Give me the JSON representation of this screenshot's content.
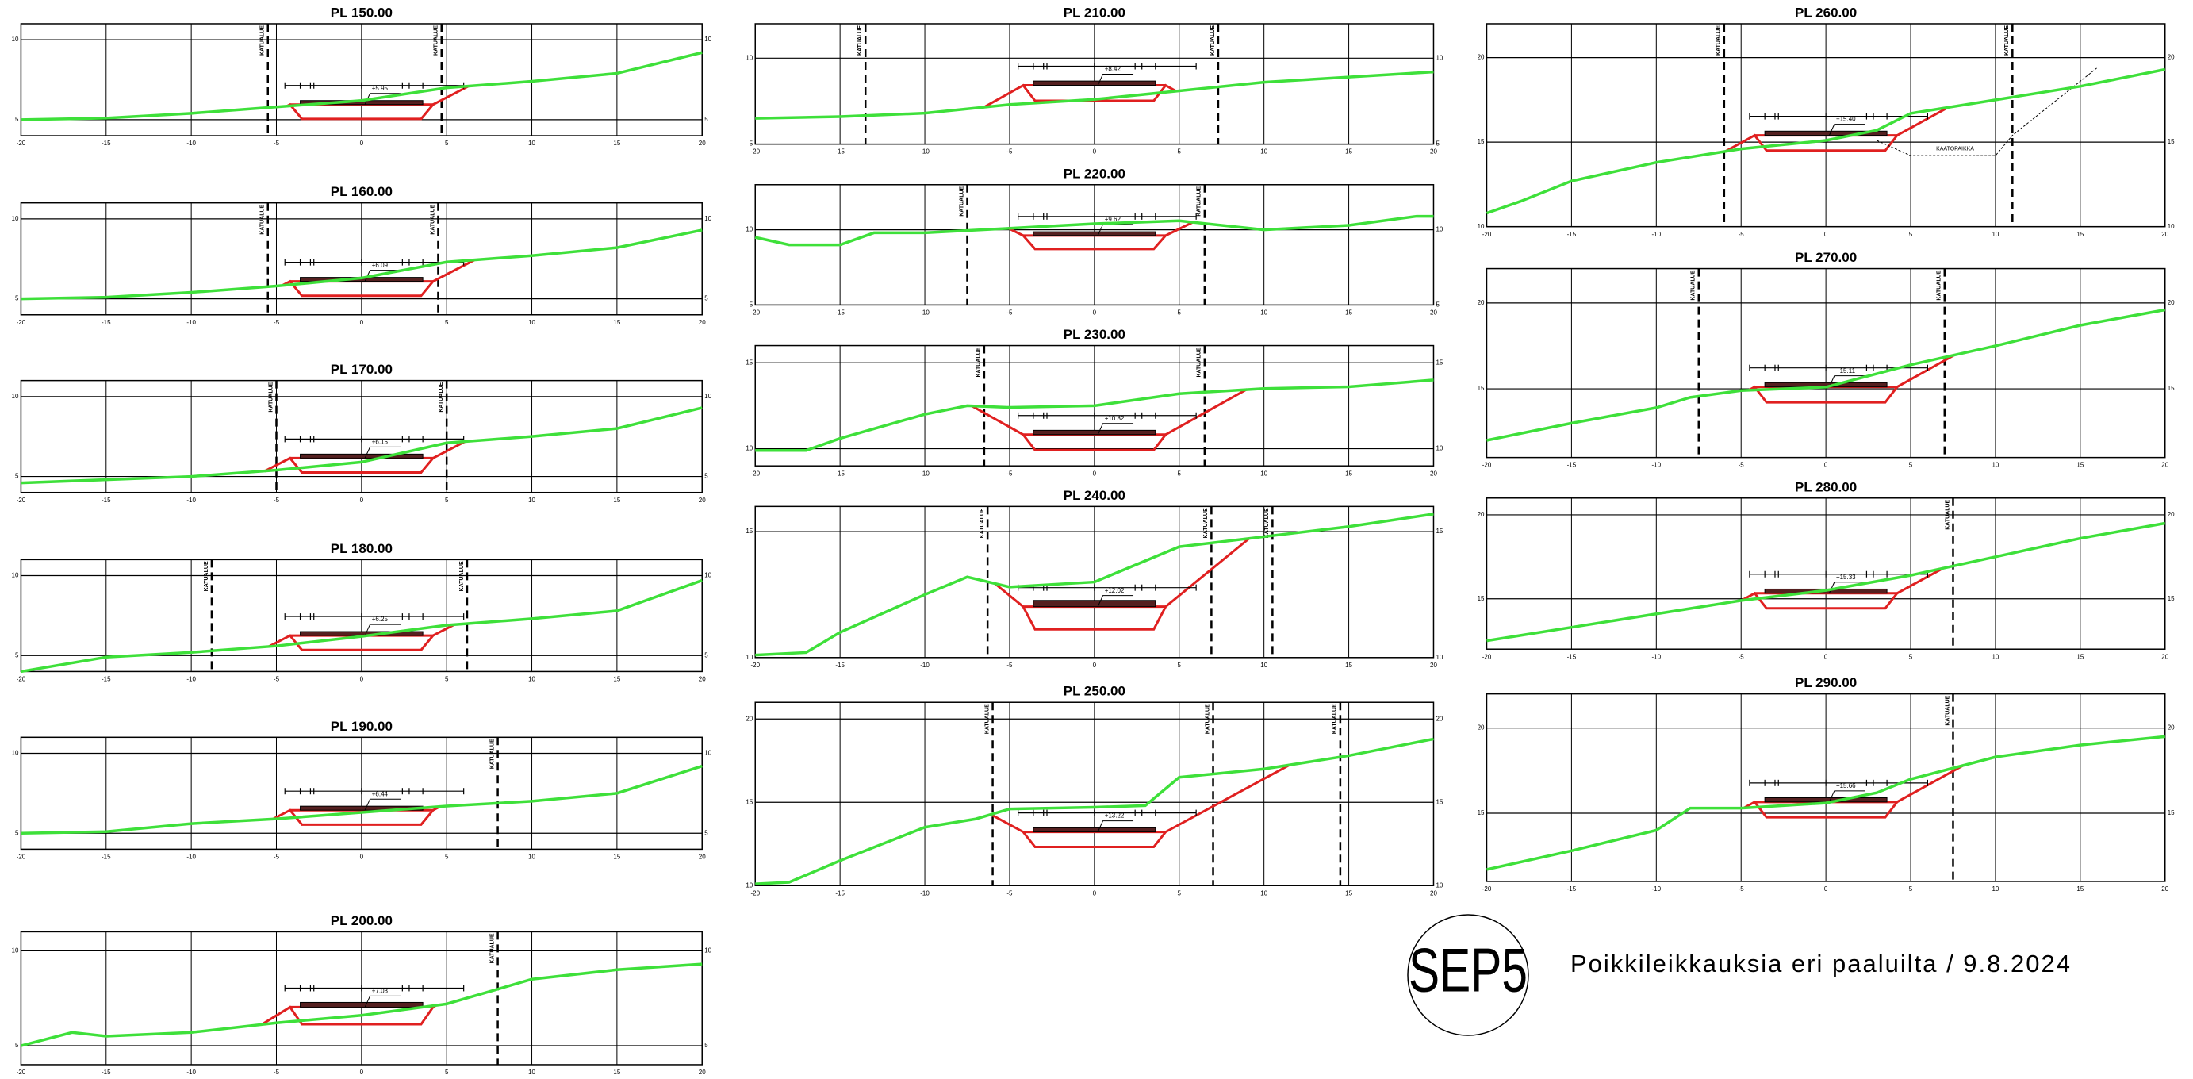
{
  "xlim": [
    -20,
    20
  ],
  "xticks": [
    -20,
    -15,
    -10,
    -5,
    0,
    5,
    10,
    15,
    20
  ],
  "boundary_label": "KATUALUE",
  "logo": "SEP5",
  "caption": "Poikkileikkauksia eri paaluilta / 9.8.2024",
  "sections": [
    {
      "title": "PL 150.00",
      "ylim": [
        4,
        11
      ],
      "yticks": [
        5,
        10
      ],
      "ground": {
        "x": [
          -20,
          -15,
          -10,
          -5,
          0,
          5,
          10,
          15,
          20
        ],
        "y": [
          5.0,
          5.1,
          5.4,
          5.8,
          6.2,
          7.0,
          7.4,
          7.9,
          9.2
        ]
      },
      "level": {
        "value": 5.95,
        "label": "+5.95"
      },
      "boundaries": [
        -5.5,
        4.7
      ]
    },
    {
      "title": "PL 160.00",
      "ylim": [
        4,
        11
      ],
      "yticks": [
        5,
        10
      ],
      "ground": {
        "x": [
          -20,
          -15,
          -10,
          -5,
          0,
          5,
          10,
          15,
          20
        ],
        "y": [
          5.0,
          5.1,
          5.4,
          5.8,
          6.3,
          7.3,
          7.7,
          8.2,
          9.3
        ]
      },
      "level": {
        "value": 6.09,
        "label": "+6.09"
      },
      "boundaries": [
        -5.5,
        4.5
      ]
    },
    {
      "title": "PL 170.00",
      "ylim": [
        4,
        11
      ],
      "yticks": [
        5,
        10
      ],
      "ground": {
        "x": [
          -20,
          -15,
          -10,
          -5,
          0,
          5,
          10,
          15,
          20
        ],
        "y": [
          4.6,
          4.8,
          5.0,
          5.4,
          5.9,
          7.1,
          7.5,
          8.0,
          9.3
        ]
      },
      "level": {
        "value": 6.15,
        "label": "+6.15"
      },
      "boundaries": [
        -5,
        5
      ]
    },
    {
      "title": "PL 180.00",
      "ylim": [
        4,
        11
      ],
      "yticks": [
        5,
        10
      ],
      "ground": {
        "x": [
          -20,
          -15,
          -10,
          -5,
          0,
          5,
          10,
          15,
          20
        ],
        "y": [
          4.0,
          4.9,
          5.2,
          5.6,
          6.2,
          6.9,
          7.3,
          7.8,
          9.7
        ]
      },
      "level": {
        "value": 6.25,
        "label": "+6.25"
      },
      "boundaries": [
        -8.8,
        6.2
      ]
    },
    {
      "title": "PL 190.00",
      "ylim": [
        4,
        11
      ],
      "yticks": [
        5,
        10
      ],
      "ground": {
        "x": [
          -20,
          -15,
          -10,
          -5,
          0,
          5,
          10,
          15,
          20
        ],
        "y": [
          5.0,
          5.1,
          5.6,
          5.9,
          6.3,
          6.7,
          7.0,
          7.5,
          9.2
        ]
      },
      "level": {
        "value": 6.44,
        "label": "+6.44"
      },
      "boundaries": [
        8
      ]
    },
    {
      "title": "PL 200.00",
      "ylim": [
        4,
        11
      ],
      "yticks": [
        5,
        10
      ],
      "ground": {
        "x": [
          -20,
          -17,
          -15,
          -10,
          -5,
          0,
          5,
          10,
          15,
          20
        ],
        "y": [
          5.0,
          5.7,
          5.5,
          5.7,
          6.2,
          6.6,
          7.2,
          8.5,
          9.0,
          9.3
        ]
      },
      "level": {
        "value": 7.03,
        "label": "+7.03"
      },
      "boundaries": [
        8
      ]
    },
    {
      "title": "PL 210.00",
      "ylim": [
        5,
        12
      ],
      "yticks": [
        5,
        10
      ],
      "ground": {
        "x": [
          -20,
          -15,
          -10,
          -5,
          0,
          5,
          10,
          15,
          20
        ],
        "y": [
          6.5,
          6.6,
          6.8,
          7.3,
          7.6,
          8.1,
          8.6,
          8.9,
          9.2
        ]
      },
      "level": {
        "value": 8.42,
        "label": "+8.42"
      },
      "boundaries": [
        -13.5,
        7.3
      ]
    },
    {
      "title": "PL 220.00",
      "ylim": [
        5,
        13
      ],
      "yticks": [
        5,
        10
      ],
      "ground": {
        "x": [
          -20,
          -18,
          -15,
          -13,
          -10,
          -5,
          0,
          5,
          10,
          15,
          19,
          20
        ],
        "y": [
          9.5,
          9.0,
          9.0,
          9.8,
          9.8,
          10.1,
          10.4,
          10.6,
          10.0,
          10.3,
          10.9,
          10.9
        ]
      },
      "level": {
        "value": 9.62,
        "label": "+9.62"
      },
      "boundaries": [
        -7.5,
        6.5
      ]
    },
    {
      "title": "PL 230.00",
      "ylim": [
        9,
        16
      ],
      "yticks": [
        10,
        15
      ],
      "ground": {
        "x": [
          -20,
          -17,
          -15,
          -10,
          -7.5,
          -5,
          0,
          5,
          10,
          15,
          20
        ],
        "y": [
          9.9,
          9.9,
          10.6,
          12.0,
          12.5,
          12.4,
          12.5,
          13.2,
          13.5,
          13.6,
          14.0
        ]
      },
      "level": {
        "value": 10.82,
        "label": "+10.82"
      },
      "boundaries": [
        -6.5,
        6.5
      ]
    },
    {
      "title": "PL 240.00",
      "ylim": [
        10,
        16
      ],
      "yticks": [
        10,
        15
      ],
      "ground": {
        "x": [
          -20,
          -17,
          -15,
          -10,
          -7.5,
          -5,
          0,
          5,
          10,
          15,
          20
        ],
        "y": [
          10.1,
          10.2,
          11.0,
          12.5,
          13.2,
          12.8,
          13.0,
          14.4,
          14.8,
          15.2,
          15.7
        ]
      },
      "level": {
        "value": 12.02,
        "label": "+12.02"
      },
      "boundaries": [
        -6.3,
        6.9,
        10.5
      ]
    },
    {
      "title": "PL 250.00",
      "ylim": [
        10,
        21
      ],
      "yticks": [
        10,
        15,
        20
      ],
      "ground": {
        "x": [
          -20,
          -18,
          -15,
          -10,
          -7,
          -5,
          0,
          3,
          5,
          10,
          15,
          20
        ],
        "y": [
          10.1,
          10.2,
          11.5,
          13.5,
          14.0,
          14.6,
          14.7,
          14.8,
          16.5,
          17.0,
          17.8,
          18.8
        ]
      },
      "level": {
        "value": 13.22,
        "label": "+13.22"
      },
      "boundaries": [
        -6,
        7,
        14.5
      ]
    },
    {
      "title": "PL 260.00",
      "ylim": [
        10,
        22
      ],
      "yticks": [
        10,
        15,
        20
      ],
      "ground": {
        "x": [
          -20,
          -18,
          -15,
          -10,
          -5,
          0,
          3,
          5,
          10,
          15,
          20
        ],
        "y": [
          10.8,
          11.5,
          12.7,
          13.8,
          14.6,
          15.1,
          15.7,
          16.7,
          17.5,
          18.3,
          19.3
        ]
      },
      "level": {
        "value": 15.4,
        "label": "+15.40"
      },
      "boundaries": [
        -6,
        11
      ],
      "note": "KAATOPAIKKA"
    },
    {
      "title": "PL 270.00",
      "ylim": [
        11,
        22
      ],
      "yticks": [
        15,
        20
      ],
      "ground": {
        "x": [
          -20,
          -15,
          -10,
          -8,
          -5,
          0,
          5,
          10,
          15,
          20
        ],
        "y": [
          12.0,
          13.0,
          13.9,
          14.5,
          14.9,
          15.1,
          16.4,
          17.5,
          18.7,
          19.6
        ]
      },
      "level": {
        "value": 15.11,
        "label": "+15.11"
      },
      "boundaries": [
        -7.5,
        7
      ]
    },
    {
      "title": "PL 280.00",
      "ylim": [
        12,
        21
      ],
      "yticks": [
        15,
        20
      ],
      "ground": {
        "x": [
          -20,
          -15,
          -10,
          -5,
          0,
          5,
          10,
          15,
          20
        ],
        "y": [
          12.5,
          13.3,
          14.1,
          14.9,
          15.5,
          16.4,
          17.5,
          18.6,
          19.5
        ]
      },
      "level": {
        "value": 15.33,
        "label": "+15.33"
      },
      "boundaries": [
        7.5
      ]
    },
    {
      "title": "PL 290.00",
      "ylim": [
        11,
        22
      ],
      "yticks": [
        15,
        20
      ],
      "ground": {
        "x": [
          -20,
          -15,
          -10,
          -8,
          -5,
          0,
          3,
          5,
          10,
          15,
          20
        ],
        "y": [
          11.7,
          12.8,
          14.0,
          15.3,
          15.3,
          15.6,
          16.2,
          17.0,
          18.3,
          19.0,
          19.5
        ]
      },
      "level": {
        "value": 15.66,
        "label": "+15.66"
      },
      "boundaries": [
        7.5
      ]
    }
  ]
}
